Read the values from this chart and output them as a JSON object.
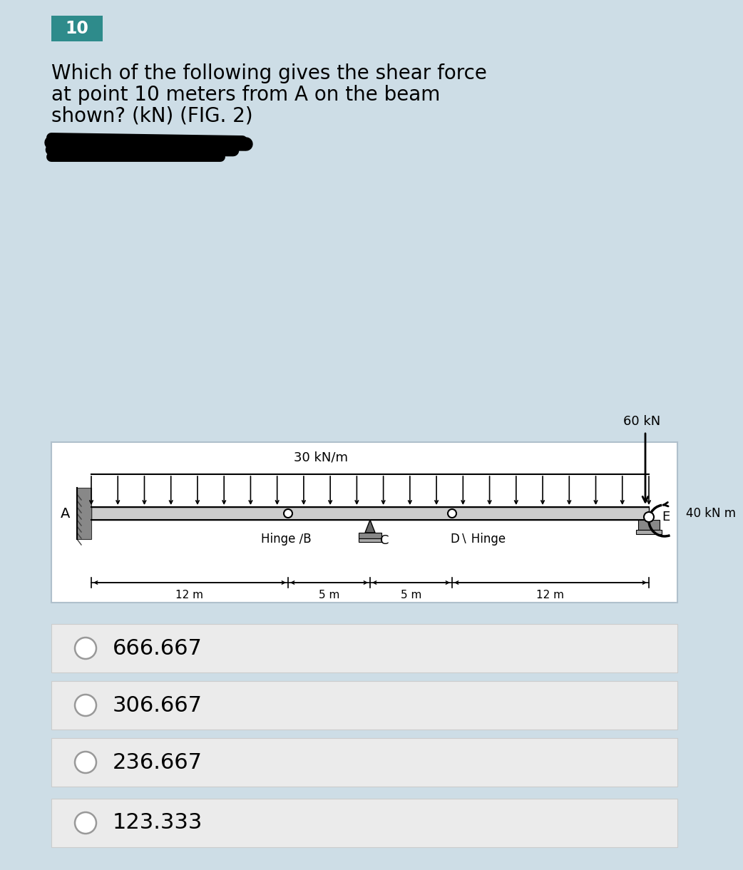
{
  "question_number": "10",
  "question_number_bg": "#2e8b8b",
  "question_number_color": "white",
  "question_text_line1": "Which of the following gives the shear force",
  "question_text_line2": "at point 10 meters from A on the beam",
  "question_text_line3": "shown? (kN) (FIG. 2)",
  "page_bg": "#cddde6",
  "diagram_bg": "white",
  "diagram_border": "#b0c0cc",
  "options": [
    "666.667",
    "306.667",
    "236.667",
    "123.333"
  ],
  "option_bg": "#ebebeb",
  "option_border": "#cccccc",
  "distributed_load_label": "30 kN/m",
  "point_load_label": "60 kN",
  "moment_label": "40 kN m",
  "dim_12m_left": "12 m",
  "dim_5m_left": "5 m",
  "dim_5m_right": "5 m",
  "dim_12m_right": "12 m",
  "label_A": "A",
  "label_B": "B",
  "label_C": "C",
  "label_D": "D",
  "label_E": "E",
  "label_hinge_B": "Hinge",
  "label_hinge_D": "Hinge",
  "beam_color": "#111111",
  "arrow_color": "#111111"
}
